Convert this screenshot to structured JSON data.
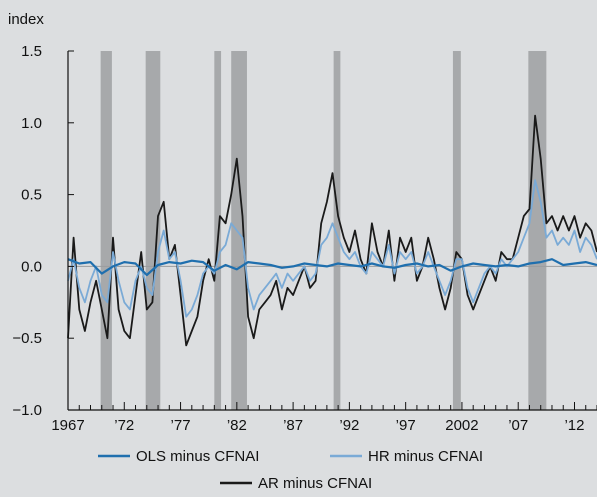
{
  "chart_data": {
    "type": "line",
    "ylabel": "index",
    "xlabel": "",
    "xlim": [
      1967,
      2014
    ],
    "ylim": [
      -1.0,
      1.5
    ],
    "yticks": [
      {
        "v": 1.5,
        "label": "1.5"
      },
      {
        "v": 1.0,
        "label": "1.0"
      },
      {
        "v": 0.5,
        "label": "0.5"
      },
      {
        "v": 0.0,
        "label": "0.0"
      },
      {
        "v": -0.5,
        "label": "−0.5"
      },
      {
        "v": -1.0,
        "label": "−1.0"
      }
    ],
    "xticks": [
      {
        "v": 1967,
        "label": "1967"
      },
      {
        "v": 1972,
        "label": "’72"
      },
      {
        "v": 1977,
        "label": "’77"
      },
      {
        "v": 1982,
        "label": "’82"
      },
      {
        "v": 1987,
        "label": "’87"
      },
      {
        "v": 1992,
        "label": "’92"
      },
      {
        "v": 1997,
        "label": "’97"
      },
      {
        "v": 2002,
        "label": "2002"
      },
      {
        "v": 2007,
        "label": "’07"
      },
      {
        "v": 2012,
        "label": "’12"
      }
    ],
    "recessions": [
      [
        1969.9,
        1970.9
      ],
      [
        1973.9,
        1975.2
      ],
      [
        1980.0,
        1980.6
      ],
      [
        1981.5,
        1982.9
      ],
      [
        1990.6,
        1991.2
      ],
      [
        2001.2,
        2001.9
      ],
      [
        2007.9,
        2009.5
      ]
    ],
    "legend_position": "bottom",
    "series": [
      {
        "name": "OLS minus CFNAI",
        "color": "#1f6fae",
        "x": [
          1967,
          1968,
          1969,
          1970,
          1971,
          1972,
          1973,
          1974,
          1975,
          1976,
          1977,
          1978,
          1979,
          1980,
          1981,
          1982,
          1983,
          1984,
          1985,
          1986,
          1987,
          1988,
          1989,
          1990,
          1991,
          1992,
          1993,
          1994,
          1995,
          1996,
          1997,
          1998,
          1999,
          2000,
          2001,
          2002,
          2003,
          2004,
          2005,
          2006,
          2007,
          2008,
          2009,
          2010,
          2011,
          2012,
          2013,
          2014
        ],
        "y": [
          0.05,
          0.02,
          0.03,
          -0.05,
          0.0,
          0.03,
          0.02,
          -0.06,
          0.01,
          0.03,
          0.02,
          0.04,
          0.03,
          -0.03,
          0.01,
          -0.02,
          0.03,
          0.02,
          0.01,
          -0.01,
          0.0,
          0.02,
          0.01,
          0.0,
          0.02,
          0.01,
          0.0,
          0.02,
          0.0,
          -0.01,
          0.01,
          0.02,
          0.0,
          0.01,
          -0.03,
          0.0,
          0.02,
          0.01,
          0.0,
          0.01,
          0.0,
          0.02,
          0.03,
          0.05,
          0.01,
          0.02,
          0.03,
          0.01
        ]
      },
      {
        "name": "HR minus CFNAI",
        "color": "#7aaad6",
        "x": [
          1967,
          1967.5,
          1968,
          1968.5,
          1969,
          1969.5,
          1970,
          1970.5,
          1971,
          1971.5,
          1972,
          1972.5,
          1973,
          1973.5,
          1974,
          1974.5,
          1975,
          1975.5,
          1976,
          1976.5,
          1977,
          1977.5,
          1978,
          1978.5,
          1979,
          1979.5,
          1980,
          1980.5,
          1981,
          1981.5,
          1982,
          1982.5,
          1983,
          1983.5,
          1984,
          1984.5,
          1985,
          1985.5,
          1986,
          1986.5,
          1987,
          1987.5,
          1988,
          1988.5,
          1989,
          1989.5,
          1990,
          1990.5,
          1991,
          1991.5,
          1992,
          1992.5,
          1993,
          1993.5,
          1994,
          1994.5,
          1995,
          1995.5,
          1996,
          1996.5,
          1997,
          1997.5,
          1998,
          1998.5,
          1999,
          1999.5,
          2000,
          2000.5,
          2001,
          2001.5,
          2002,
          2002.5,
          2003,
          2003.5,
          2004,
          2004.5,
          2005,
          2005.5,
          2006,
          2006.5,
          2007,
          2007.5,
          2008,
          2008.5,
          2009,
          2009.5,
          2010,
          2010.5,
          2011,
          2011.5,
          2012,
          2012.5,
          2013,
          2013.5,
          2014
        ],
        "y": [
          -0.1,
          0.05,
          -0.15,
          -0.25,
          -0.1,
          0.0,
          -0.2,
          -0.25,
          0.1,
          -0.1,
          -0.25,
          -0.3,
          -0.1,
          0.0,
          -0.15,
          -0.2,
          0.1,
          0.25,
          0.05,
          0.1,
          -0.1,
          -0.35,
          -0.3,
          -0.2,
          -0.05,
          0.0,
          -0.05,
          0.1,
          0.15,
          0.3,
          0.25,
          0.2,
          -0.15,
          -0.3,
          -0.2,
          -0.15,
          -0.1,
          -0.05,
          -0.15,
          -0.05,
          -0.1,
          -0.05,
          0.0,
          -0.1,
          -0.05,
          0.15,
          0.2,
          0.3,
          0.2,
          0.1,
          0.05,
          0.1,
          0.0,
          -0.05,
          0.1,
          0.05,
          0.0,
          0.15,
          -0.05,
          0.1,
          0.05,
          0.1,
          -0.05,
          0.0,
          0.1,
          0.0,
          -0.1,
          -0.2,
          -0.1,
          0.05,
          0.05,
          -0.15,
          -0.25,
          -0.15,
          -0.05,
          0.0,
          -0.05,
          0.05,
          0.0,
          0.05,
          0.1,
          0.2,
          0.3,
          0.6,
          0.45,
          0.2,
          0.25,
          0.15,
          0.2,
          0.15,
          0.25,
          0.1,
          0.2,
          0.15,
          0.05
        ]
      },
      {
        "name": "AR minus CFNAI",
        "color": "#1a1a1a",
        "x": [
          1967,
          1967.5,
          1968,
          1968.5,
          1969,
          1969.5,
          1970,
          1970.5,
          1971,
          1971.5,
          1972,
          1972.5,
          1973,
          1973.5,
          1974,
          1974.5,
          1975,
          1975.5,
          1976,
          1976.5,
          1977,
          1977.5,
          1978,
          1978.5,
          1979,
          1979.5,
          1980,
          1980.5,
          1981,
          1981.5,
          1982,
          1982.5,
          1983,
          1983.5,
          1984,
          1984.5,
          1985,
          1985.5,
          1986,
          1986.5,
          1987,
          1987.5,
          1988,
          1988.5,
          1989,
          1989.5,
          1990,
          1990.5,
          1991,
          1991.5,
          1992,
          1992.5,
          1993,
          1993.5,
          1994,
          1994.5,
          1995,
          1995.5,
          1996,
          1996.5,
          1997,
          1997.5,
          1998,
          1998.5,
          1999,
          1999.5,
          2000,
          2000.5,
          2001,
          2001.5,
          2002,
          2002.5,
          2003,
          2003.5,
          2004,
          2004.5,
          2005,
          2005.5,
          2006,
          2006.5,
          2007,
          2007.5,
          2008,
          2008.5,
          2009,
          2009.5,
          2010,
          2010.5,
          2011,
          2011.5,
          2012,
          2012.5,
          2013,
          2013.5,
          2014
        ],
        "y": [
          -0.5,
          0.2,
          -0.3,
          -0.45,
          -0.25,
          -0.1,
          -0.3,
          -0.5,
          0.2,
          -0.3,
          -0.45,
          -0.5,
          -0.2,
          0.1,
          -0.3,
          -0.25,
          0.35,
          0.45,
          0.05,
          0.15,
          -0.2,
          -0.55,
          -0.45,
          -0.35,
          -0.1,
          0.05,
          -0.1,
          0.35,
          0.3,
          0.5,
          0.75,
          0.35,
          -0.35,
          -0.5,
          -0.3,
          -0.25,
          -0.2,
          -0.1,
          -0.3,
          -0.15,
          -0.2,
          -0.1,
          0.0,
          -0.15,
          -0.1,
          0.3,
          0.45,
          0.65,
          0.35,
          0.2,
          0.1,
          0.25,
          0.05,
          -0.05,
          0.3,
          0.1,
          0.0,
          0.25,
          -0.1,
          0.2,
          0.1,
          0.2,
          -0.1,
          0.0,
          0.2,
          0.05,
          -0.15,
          -0.3,
          -0.15,
          0.1,
          0.05,
          -0.2,
          -0.3,
          -0.2,
          -0.1,
          0.0,
          -0.1,
          0.1,
          0.05,
          0.05,
          0.2,
          0.35,
          0.4,
          1.05,
          0.75,
          0.3,
          0.35,
          0.25,
          0.35,
          0.25,
          0.35,
          0.2,
          0.3,
          0.25,
          0.1
        ]
      }
    ]
  }
}
